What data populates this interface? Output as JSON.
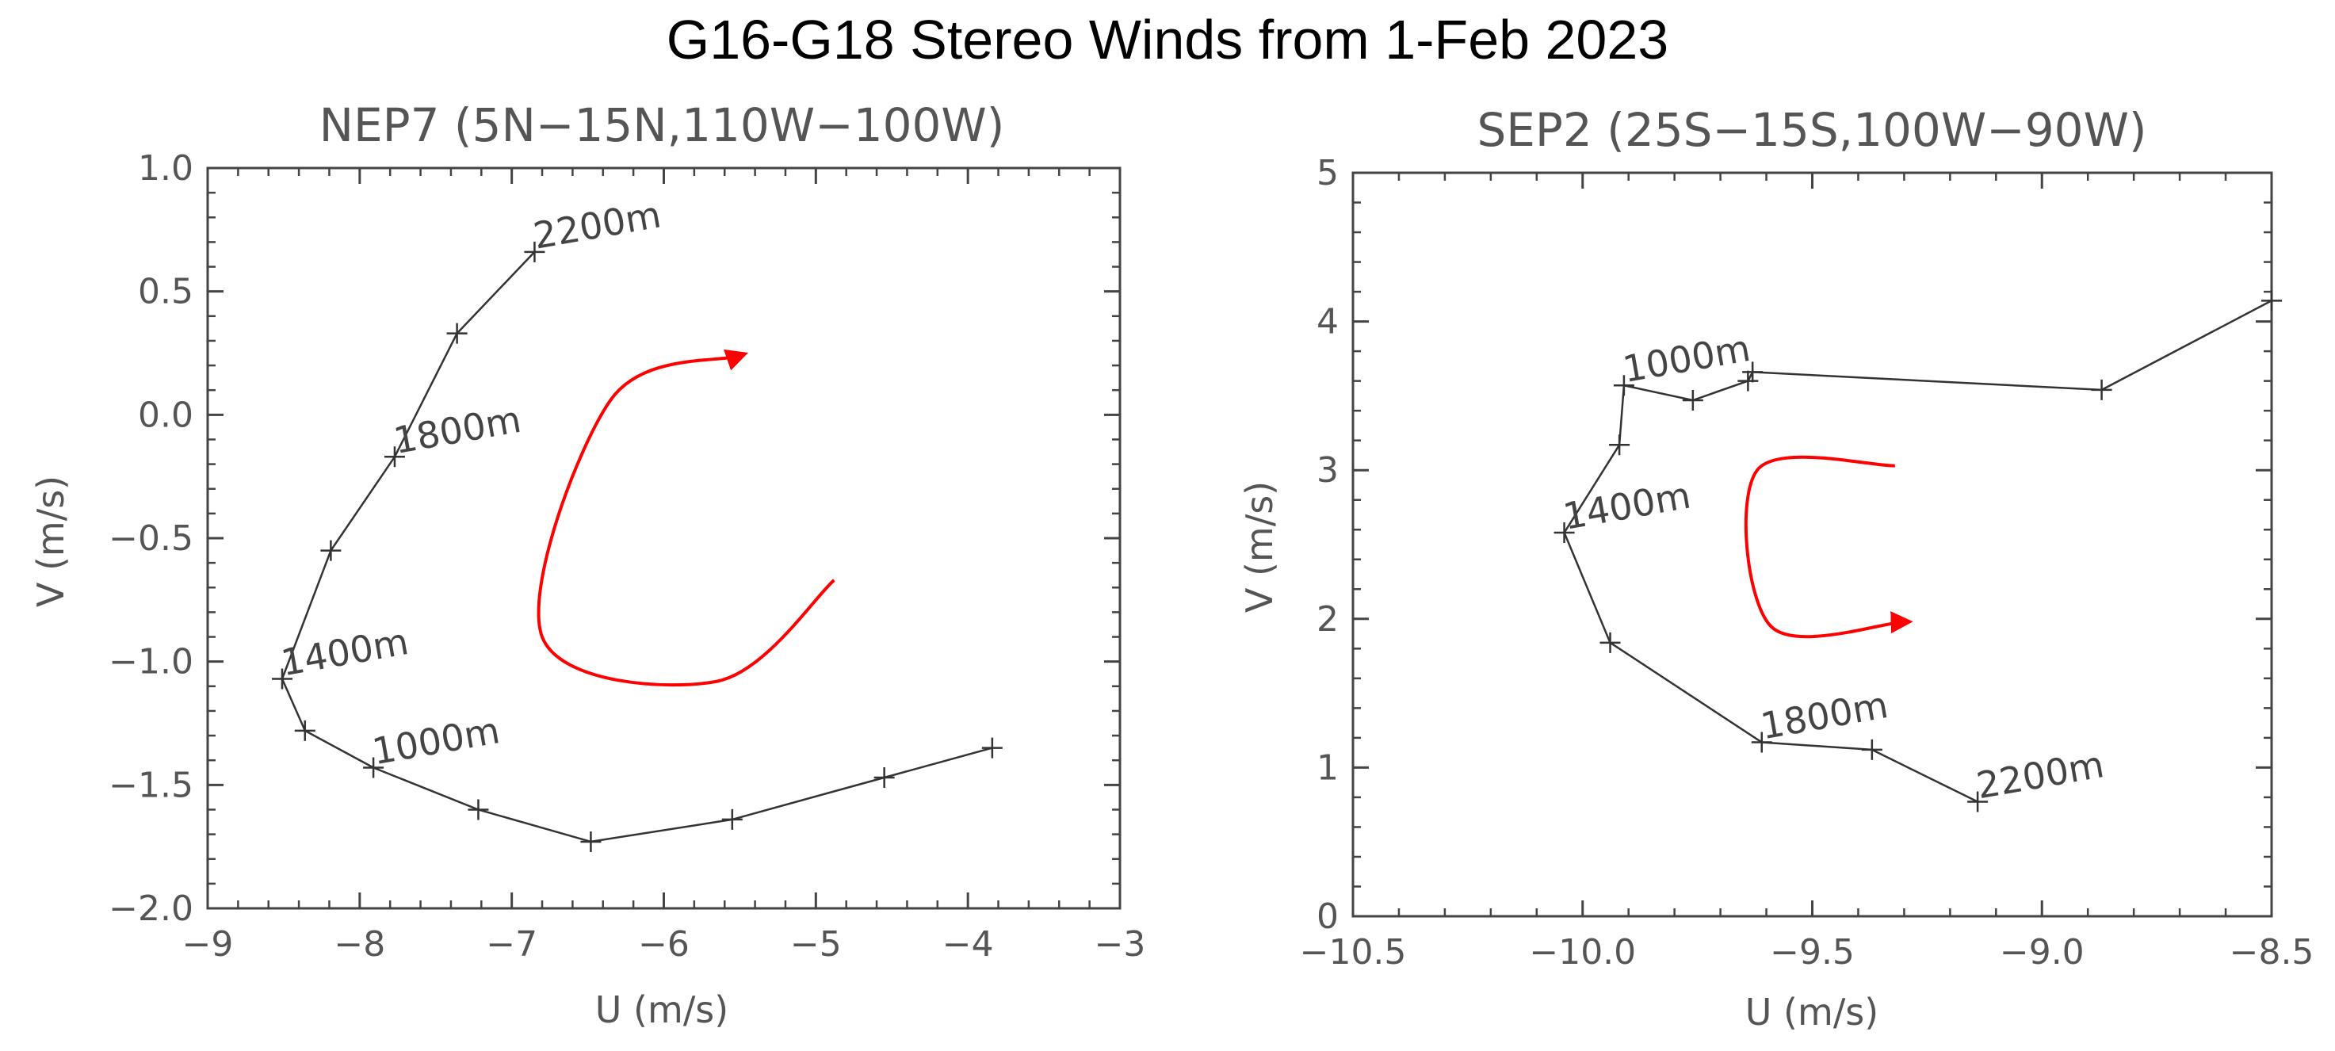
{
  "title": "G16-G18 Stereo Winds from 1-Feb 2023",
  "colors": {
    "line": "#333333",
    "axis": "#444444",
    "arrow": "#ff0000"
  },
  "chart_data": [
    {
      "type": "line",
      "title": "NEP7 (5N−15N,110W−100W)",
      "xlabel": "U (m/s)",
      "ylabel": "V (m/s)",
      "xlim": [
        -9,
        -3
      ],
      "ylim": [
        -2.0,
        1.0
      ],
      "xticks": [
        -9,
        -8,
        -7,
        -6,
        -5,
        -4,
        -3
      ],
      "xtick_labels": [
        "−9",
        "−8",
        "−7",
        "−6",
        "−5",
        "−4",
        "−3"
      ],
      "yticks": [
        -2.0,
        -1.5,
        -1.0,
        -0.5,
        0.0,
        0.5,
        1.0
      ],
      "ytick_labels": [
        "−2.0",
        "−1.5",
        "−1.0",
        "−0.5",
        "0.0",
        "0.5",
        "1.0"
      ],
      "points": [
        {
          "u": -3.84,
          "v": -1.35
        },
        {
          "u": -4.55,
          "v": -1.47
        },
        {
          "u": -5.55,
          "v": -1.64
        },
        {
          "u": -6.48,
          "v": -1.73
        },
        {
          "u": -7.22,
          "v": -1.6
        },
        {
          "u": -7.91,
          "v": -1.43
        },
        {
          "u": -8.36,
          "v": -1.28
        },
        {
          "u": -8.51,
          "v": -1.07
        },
        {
          "u": -8.19,
          "v": -0.55
        },
        {
          "u": -7.77,
          "v": -0.17
        },
        {
          "u": -7.36,
          "v": 0.33
        },
        {
          "u": -6.85,
          "v": 0.66
        }
      ],
      "annotations": [
        {
          "text": "2200m",
          "u": -6.85,
          "v": 0.66
        },
        {
          "text": "1800m",
          "u": -7.77,
          "v": -0.17
        },
        {
          "text": "1400m",
          "u": -8.51,
          "v": -1.07
        },
        {
          "text": "1000m",
          "u": -7.91,
          "v": -1.43
        }
      ],
      "rotation_arrow": {
        "direction": "clockwise",
        "path": [
          [
            -4.88,
            -0.67
          ],
          [
            -5.65,
            -1.08
          ],
          [
            -6.8,
            -0.9
          ],
          [
            -6.35,
            0.06
          ],
          [
            -5.5,
            0.24
          ]
        ]
      }
    },
    {
      "type": "line",
      "title": "SEP2 (25S−15S,100W−90W)",
      "xlabel": "U (m/s)",
      "ylabel": "V (m/s)",
      "xlim": [
        -10.5,
        -8.5
      ],
      "ylim": [
        0,
        5
      ],
      "xticks": [
        -10.5,
        -10.0,
        -9.5,
        -9.0,
        -8.5
      ],
      "xtick_labels": [
        "−10.5",
        "−10.0",
        "−9.5",
        "−9.0",
        "−8.5"
      ],
      "yticks": [
        0,
        1,
        2,
        3,
        4,
        5
      ],
      "ytick_labels": [
        "0",
        "1",
        "2",
        "3",
        "4",
        "5"
      ],
      "points": [
        {
          "u": -8.5,
          "v": 4.14
        },
        {
          "u": -8.87,
          "v": 3.54
        },
        {
          "u": -9.63,
          "v": 3.66
        },
        {
          "u": -9.64,
          "v": 3.6
        },
        {
          "u": -9.76,
          "v": 3.47
        },
        {
          "u": -9.91,
          "v": 3.57
        },
        {
          "u": -9.92,
          "v": 3.17
        },
        {
          "u": -10.04,
          "v": 2.58
        },
        {
          "u": -9.94,
          "v": 1.84
        },
        {
          "u": -9.61,
          "v": 1.17
        },
        {
          "u": -9.37,
          "v": 1.12
        },
        {
          "u": -9.14,
          "v": 0.77
        }
      ],
      "annotations": [
        {
          "text": "1000m",
          "u": -9.91,
          "v": 3.57
        },
        {
          "text": "1400m",
          "u": -10.04,
          "v": 2.58
        },
        {
          "text": "1800m",
          "u": -9.61,
          "v": 1.17
        },
        {
          "text": "2200m",
          "u": -9.14,
          "v": 0.77
        }
      ],
      "rotation_arrow": {
        "direction": "counterclockwise",
        "path": [
          [
            -9.32,
            3.03
          ],
          [
            -9.62,
            3.0
          ],
          [
            -9.59,
            1.95
          ],
          [
            -9.3,
            1.98
          ]
        ]
      }
    }
  ]
}
